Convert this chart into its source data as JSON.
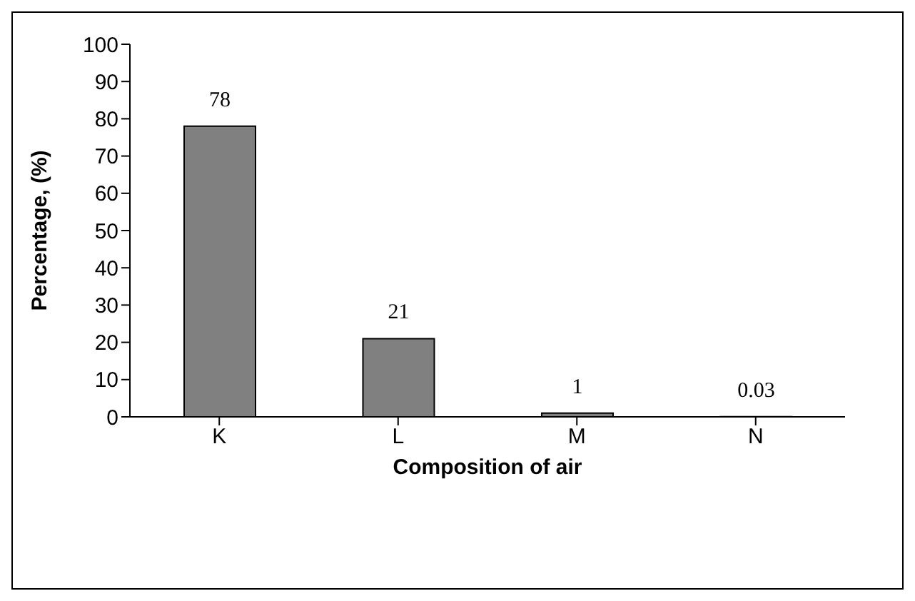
{
  "chart_data": {
    "type": "bar",
    "xlabel": "Composition of air",
    "ylabel": "Percentage, (%)",
    "categories": [
      "K",
      "L",
      "M",
      "N"
    ],
    "values": [
      78,
      21,
      1,
      0.03
    ],
    "color": "#808080",
    "ylim": [
      0,
      100
    ],
    "yticks": [
      0,
      10,
      20,
      30,
      40,
      50,
      60,
      70,
      80,
      90,
      100
    ],
    "grid": false,
    "data_labels": true
  }
}
